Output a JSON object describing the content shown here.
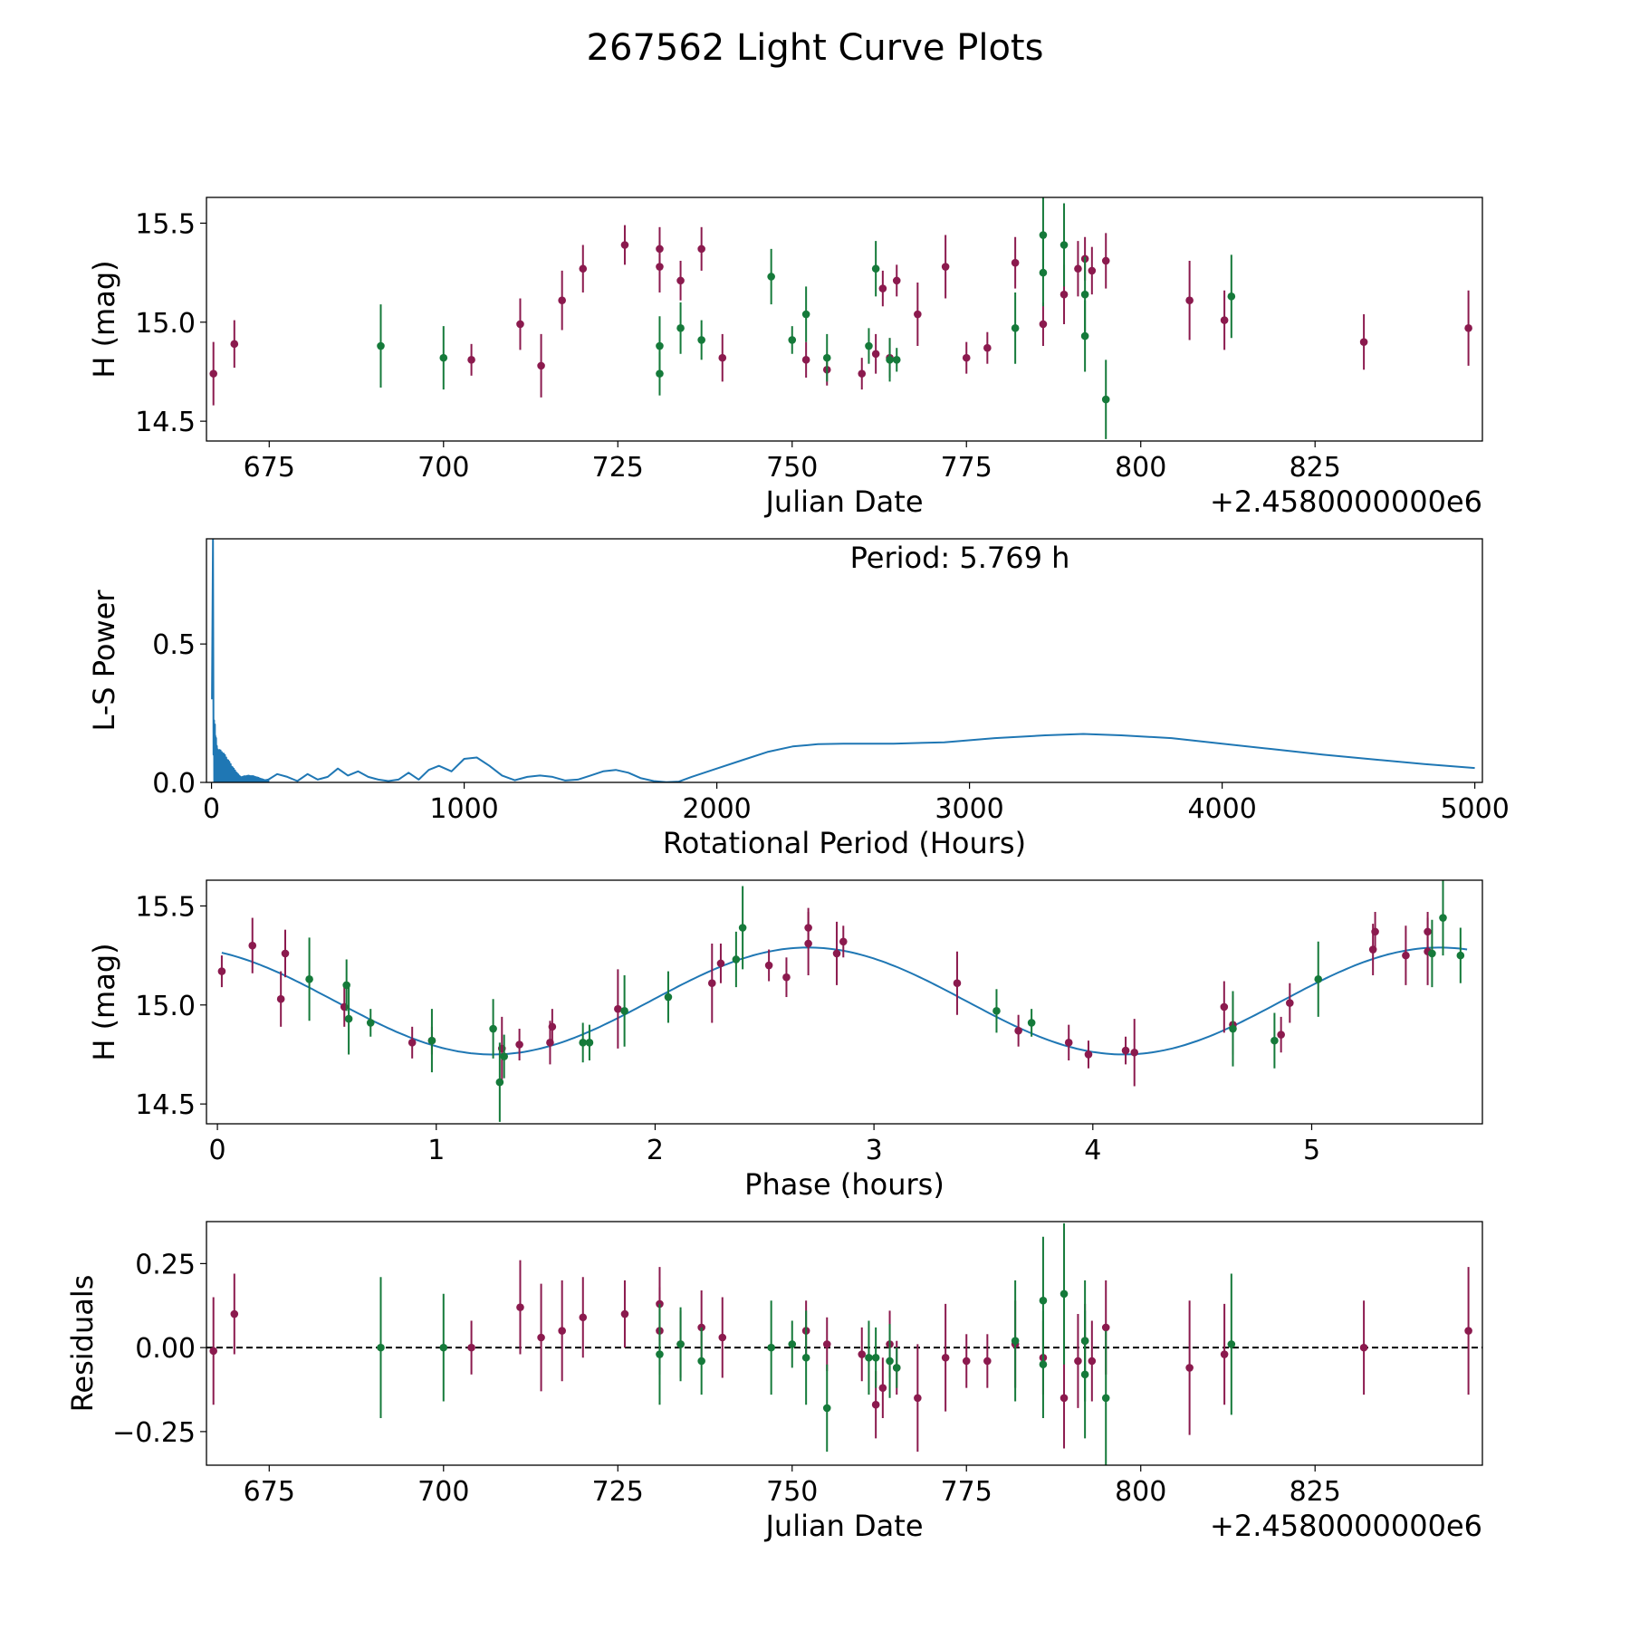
{
  "title": "267562 Light Curve Plots",
  "colors": {
    "r_band": "#8b1a4e",
    "g_band": "#157a3a",
    "model": "#1f77b4",
    "zero_line": "#000000"
  },
  "chart_data": [
    {
      "id": "lightcurve",
      "type": "scatter",
      "xlabel": "Julian Date",
      "ylabel": "H (mag)",
      "offset_label": "+2.4580000000e6",
      "xlim": [
        666,
        849
      ],
      "ylim": [
        14.4,
        15.63
      ],
      "xticks": [
        675,
        700,
        725,
        750,
        775,
        800,
        825
      ],
      "yticks": [
        14.5,
        15.0,
        15.5
      ],
      "yticklabels": [
        "14.5",
        "15.0",
        "15.5"
      ],
      "series": [
        {
          "name": "r",
          "color": "#8b1a4e",
          "points": [
            [
              667,
              14.74,
              0.16
            ],
            [
              670,
              14.89,
              0.12
            ],
            [
              704,
              14.81,
              0.08
            ],
            [
              711,
              14.99,
              0.13
            ],
            [
              714,
              14.78,
              0.16
            ],
            [
              717,
              15.11,
              0.15
            ],
            [
              720,
              15.27,
              0.12
            ],
            [
              726,
              15.39,
              0.1
            ],
            [
              731,
              15.28,
              0.13
            ],
            [
              731,
              15.37,
              0.11
            ],
            [
              734,
              15.21,
              0.1
            ],
            [
              737,
              15.37,
              0.11
            ],
            [
              740,
              14.82,
              0.12
            ],
            [
              752,
              14.81,
              0.09
            ],
            [
              755,
              14.76,
              0.08
            ],
            [
              760,
              14.74,
              0.08
            ],
            [
              762,
              14.84,
              0.1
            ],
            [
              763,
              15.17,
              0.09
            ],
            [
              764,
              14.82,
              0.1
            ],
            [
              765,
              15.21,
              0.08
            ],
            [
              768,
              15.04,
              0.16
            ],
            [
              772,
              15.28,
              0.16
            ],
            [
              775,
              14.82,
              0.08
            ],
            [
              778,
              14.87,
              0.08
            ],
            [
              782,
              15.3,
              0.13
            ],
            [
              786,
              14.99,
              0.11
            ],
            [
              789,
              15.14,
              0.15
            ],
            [
              791,
              15.27,
              0.14
            ],
            [
              792,
              15.32,
              0.11
            ],
            [
              793,
              15.26,
              0.12
            ],
            [
              795,
              15.31,
              0.14
            ],
            [
              807,
              15.11,
              0.2
            ],
            [
              812,
              15.01,
              0.15
            ],
            [
              832,
              14.9,
              0.14
            ],
            [
              847,
              14.97,
              0.19
            ]
          ]
        },
        {
          "name": "g",
          "color": "#157a3a",
          "points": [
            [
              691,
              14.88,
              0.21
            ],
            [
              700,
              14.82,
              0.16
            ],
            [
              731,
              14.88,
              0.15
            ],
            [
              731,
              14.74,
              0.11
            ],
            [
              734,
              14.97,
              0.13
            ],
            [
              737,
              14.91,
              0.1
            ],
            [
              747,
              15.23,
              0.14
            ],
            [
              750,
              14.91,
              0.07
            ],
            [
              752,
              15.04,
              0.14
            ],
            [
              755,
              14.82,
              0.12
            ],
            [
              761,
              14.88,
              0.09
            ],
            [
              762,
              15.27,
              0.14
            ],
            [
              764,
              14.81,
              0.11
            ],
            [
              765,
              14.81,
              0.06
            ],
            [
              782,
              14.97,
              0.18
            ],
            [
              786,
              15.44,
              0.19
            ],
            [
              786,
              15.25,
              0.17
            ],
            [
              789,
              15.39,
              0.21
            ],
            [
              792,
              15.14,
              0.19
            ],
            [
              792,
              14.93,
              0.18
            ],
            [
              795,
              14.61,
              0.2
            ],
            [
              813,
              15.13,
              0.21
            ]
          ]
        }
      ]
    },
    {
      "id": "periodogram",
      "type": "line",
      "xlabel": "Rotational Period (Hours)",
      "ylabel": "L-S Power",
      "annotation": "Period: 5.769 h",
      "xlim": [
        -20,
        5030
      ],
      "ylim": [
        0,
        0.88
      ],
      "xticks": [
        0,
        1000,
        2000,
        3000,
        4000,
        5000
      ],
      "yticks": [
        0.0,
        0.5
      ],
      "yticklabels": [
        "0.0",
        "0.5"
      ],
      "peak": {
        "period_hours": 5.769,
        "power": 0.88
      },
      "x": [
        225,
        260,
        300,
        340,
        380,
        420,
        460,
        500,
        540,
        580,
        620,
        660,
        700,
        740,
        780,
        820,
        860,
        900,
        950,
        1000,
        1050,
        1100,
        1150,
        1200,
        1250,
        1300,
        1350,
        1400,
        1450,
        1500,
        1550,
        1600,
        1650,
        1700,
        1750,
        1800,
        1850,
        1900,
        2000,
        2100,
        2200,
        2300,
        2400,
        2500,
        2700,
        2900,
        3100,
        3300,
        3450,
        3600,
        3800,
        4000,
        4200,
        4400,
        4600,
        4800,
        5000
      ],
      "values": [
        0.01,
        0.03,
        0.02,
        0.005,
        0.03,
        0.01,
        0.02,
        0.05,
        0.025,
        0.04,
        0.02,
        0.01,
        0.005,
        0.01,
        0.035,
        0.01,
        0.045,
        0.06,
        0.04,
        0.085,
        0.09,
        0.06,
        0.025,
        0.008,
        0.02,
        0.025,
        0.02,
        0.007,
        0.01,
        0.025,
        0.04,
        0.045,
        0.035,
        0.015,
        0.005,
        0.001,
        0.003,
        0.02,
        0.05,
        0.08,
        0.11,
        0.13,
        0.138,
        0.14,
        0.14,
        0.145,
        0.16,
        0.17,
        0.175,
        0.17,
        0.16,
        0.14,
        0.12,
        0.1,
        0.083,
        0.066,
        0.052
      ]
    },
    {
      "id": "phasecurve",
      "type": "scatter",
      "xlabel": "Phase (hours)",
      "ylabel": "H (mag)",
      "xlim": [
        -0.05,
        5.78
      ],
      "ylim": [
        14.4,
        15.63
      ],
      "xticks": [
        0,
        1,
        2,
        3,
        4,
        5
      ],
      "yticks": [
        14.5,
        15.0,
        15.5
      ],
      "yticklabels": [
        "14.5",
        "15.0",
        "15.5"
      ],
      "model": {
        "type": "sinusoid",
        "mean": 15.02,
        "amplitude": 0.27,
        "period_hours": 2.885,
        "phase_of_max_hours": 2.7
      },
      "series": [
        {
          "name": "r",
          "color": "#8b1a4e",
          "points": [
            [
              0.02,
              15.17,
              0.08
            ],
            [
              0.16,
              15.3,
              0.14
            ],
            [
              0.29,
              15.03,
              0.14
            ],
            [
              0.31,
              15.26,
              0.12
            ],
            [
              0.58,
              14.99,
              0.1
            ],
            [
              0.89,
              14.81,
              0.08
            ],
            [
              0.98,
              14.82,
              0.07
            ],
            [
              1.3,
              14.78,
              0.16
            ],
            [
              1.38,
              14.8,
              0.08
            ],
            [
              1.52,
              14.81,
              0.11
            ],
            [
              1.53,
              14.89,
              0.09
            ],
            [
              1.83,
              14.98,
              0.2
            ],
            [
              2.26,
              15.11,
              0.2
            ],
            [
              2.3,
              15.21,
              0.1
            ],
            [
              2.52,
              15.2,
              0.08
            ],
            [
              2.6,
              15.14,
              0.1
            ],
            [
              2.7,
              15.39,
              0.1
            ],
            [
              2.7,
              15.31,
              0.16
            ],
            [
              2.83,
              15.26,
              0.16
            ],
            [
              2.86,
              15.32,
              0.08
            ],
            [
              3.38,
              15.11,
              0.16
            ],
            [
              3.66,
              14.87,
              0.08
            ],
            [
              3.89,
              14.81,
              0.09
            ],
            [
              3.98,
              14.75,
              0.07
            ],
            [
              4.15,
              14.77,
              0.07
            ],
            [
              4.19,
              14.76,
              0.17
            ],
            [
              4.6,
              14.99,
              0.13
            ],
            [
              4.64,
              14.9,
              0.15
            ],
            [
              4.86,
              14.85,
              0.09
            ],
            [
              4.9,
              15.01,
              0.1
            ],
            [
              5.28,
              15.28,
              0.13
            ],
            [
              5.29,
              15.37,
              0.1
            ],
            [
              5.43,
              15.25,
              0.15
            ],
            [
              5.53,
              15.27,
              0.17
            ],
            [
              5.53,
              15.37,
              0.1
            ]
          ]
        },
        {
          "name": "g",
          "color": "#157a3a",
          "points": [
            [
              0.42,
              15.13,
              0.21
            ],
            [
              0.59,
              15.1,
              0.13
            ],
            [
              0.6,
              14.93,
              0.18
            ],
            [
              0.7,
              14.91,
              0.07
            ],
            [
              0.98,
              14.82,
              0.16
            ],
            [
              1.26,
              14.88,
              0.15
            ],
            [
              1.29,
              14.61,
              0.2
            ],
            [
              1.31,
              14.74,
              0.11
            ],
            [
              1.67,
              14.81,
              0.1
            ],
            [
              1.7,
              14.81,
              0.09
            ],
            [
              1.86,
              14.97,
              0.18
            ],
            [
              2.06,
              15.04,
              0.13
            ],
            [
              2.37,
              15.23,
              0.14
            ],
            [
              2.4,
              15.39,
              0.21
            ],
            [
              3.56,
              14.97,
              0.11
            ],
            [
              3.72,
              14.91,
              0.07
            ],
            [
              4.64,
              14.88,
              0.19
            ],
            [
              4.83,
              14.82,
              0.14
            ],
            [
              5.03,
              15.13,
              0.19
            ],
            [
              5.55,
              15.26,
              0.17
            ],
            [
              5.6,
              15.44,
              0.19
            ],
            [
              5.68,
              15.25,
              0.14
            ]
          ]
        }
      ]
    },
    {
      "id": "residuals",
      "type": "scatter",
      "xlabel": "Julian Date",
      "ylabel": "Residuals",
      "offset_label": "+2.4580000000e6",
      "xlim": [
        666,
        849
      ],
      "ylim": [
        -0.35,
        0.375
      ],
      "xticks": [
        675,
        700,
        725,
        750,
        775,
        800,
        825
      ],
      "yticks": [
        -0.25,
        0.0,
        0.25
      ],
      "yticklabels": [
        "−0.25",
        "0.00",
        "0.25"
      ],
      "reference_line": 0.0,
      "series": [
        {
          "name": "r",
          "color": "#8b1a4e",
          "points": [
            [
              667,
              -0.01,
              0.16
            ],
            [
              670,
              0.1,
              0.12
            ],
            [
              704,
              0.0,
              0.08
            ],
            [
              711,
              0.12,
              0.14
            ],
            [
              714,
              0.03,
              0.16
            ],
            [
              717,
              0.05,
              0.15
            ],
            [
              720,
              0.09,
              0.12
            ],
            [
              726,
              0.1,
              0.1
            ],
            [
              731,
              0.13,
              0.11
            ],
            [
              731,
              0.05,
              0.13
            ],
            [
              734,
              0.01,
              0.1
            ],
            [
              737,
              0.06,
              0.11
            ],
            [
              740,
              0.03,
              0.12
            ],
            [
              752,
              0.05,
              0.09
            ],
            [
              755,
              0.01,
              0.08
            ],
            [
              760,
              -0.02,
              0.08
            ],
            [
              762,
              -0.17,
              0.1
            ],
            [
              763,
              -0.12,
              0.09
            ],
            [
              764,
              0.01,
              0.1
            ],
            [
              765,
              -0.06,
              0.08
            ],
            [
              768,
              -0.15,
              0.16
            ],
            [
              772,
              -0.03,
              0.16
            ],
            [
              775,
              -0.04,
              0.08
            ],
            [
              778,
              -0.04,
              0.08
            ],
            [
              782,
              0.01,
              0.13
            ],
            [
              786,
              -0.03,
              0.11
            ],
            [
              789,
              -0.15,
              0.15
            ],
            [
              791,
              -0.04,
              0.14
            ],
            [
              792,
              0.02,
              0.11
            ],
            [
              793,
              -0.04,
              0.12
            ],
            [
              795,
              0.06,
              0.14
            ],
            [
              807,
              -0.06,
              0.2
            ],
            [
              812,
              -0.02,
              0.15
            ],
            [
              832,
              0.0,
              0.14
            ],
            [
              847,
              0.05,
              0.19
            ]
          ]
        },
        {
          "name": "g",
          "color": "#157a3a",
          "points": [
            [
              691,
              0.0,
              0.21
            ],
            [
              700,
              0.0,
              0.16
            ],
            [
              731,
              -0.02,
              0.15
            ],
            [
              734,
              0.01,
              0.11
            ],
            [
              737,
              -0.04,
              0.1
            ],
            [
              747,
              0.0,
              0.14
            ],
            [
              750,
              0.01,
              0.07
            ],
            [
              752,
              -0.03,
              0.14
            ],
            [
              755,
              -0.18,
              0.13
            ],
            [
              761,
              -0.03,
              0.11
            ],
            [
              762,
              -0.03,
              0.09
            ],
            [
              764,
              -0.04,
              0.11
            ],
            [
              765,
              -0.06,
              0.06
            ],
            [
              782,
              0.02,
              0.18
            ],
            [
              786,
              0.14,
              0.19
            ],
            [
              786,
              -0.05,
              0.16
            ],
            [
              789,
              0.16,
              0.21
            ],
            [
              792,
              -0.08,
              0.19
            ],
            [
              792,
              0.02,
              0.18
            ],
            [
              795,
              -0.15,
              0.2
            ],
            [
              813,
              0.01,
              0.21
            ]
          ]
        }
      ]
    }
  ]
}
